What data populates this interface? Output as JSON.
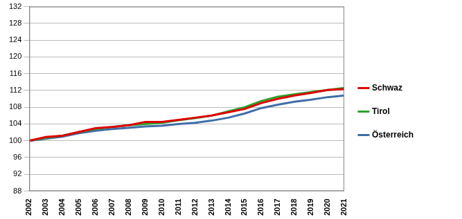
{
  "chart_data": {
    "type": "line",
    "categories": [
      "2002",
      "2003",
      "2004",
      "2005",
      "2006",
      "2007",
      "2008",
      "2009",
      "2010",
      "2011",
      "2012",
      "2013",
      "2014",
      "2015",
      "2016",
      "2017",
      "2018",
      "2019",
      "2020",
      "2021"
    ],
    "series": [
      {
        "name": "Schwaz",
        "color": "#e00000",
        "values": [
          100,
          100.9,
          101.2,
          102.1,
          103.0,
          103.3,
          103.7,
          104.5,
          104.5,
          105.0,
          105.5,
          106.0,
          106.8,
          107.6,
          109.0,
          110.0,
          110.8,
          111.4,
          112.1,
          112.3
        ]
      },
      {
        "name": "Tirol",
        "color": "#2ca02c",
        "values": [
          100,
          100.7,
          101.2,
          102.1,
          102.8,
          103.3,
          103.7,
          104.0,
          104.3,
          104.9,
          105.4,
          106.0,
          107.0,
          108.0,
          109.5,
          110.5,
          111.1,
          111.6,
          112.1,
          112.6
        ]
      },
      {
        "name": "Österreich",
        "color": "#3f6ea8",
        "values": [
          100,
          100.5,
          101.0,
          101.8,
          102.4,
          102.8,
          103.1,
          103.4,
          103.6,
          104.0,
          104.3,
          104.8,
          105.5,
          106.5,
          107.8,
          108.6,
          109.3,
          109.8,
          110.4,
          110.8
        ]
      }
    ],
    "ylim": [
      88,
      132
    ],
    "yticks": [
      88,
      92,
      96,
      100,
      104,
      108,
      112,
      116,
      120,
      124,
      128,
      132
    ],
    "grid": true,
    "legend": "right"
  }
}
